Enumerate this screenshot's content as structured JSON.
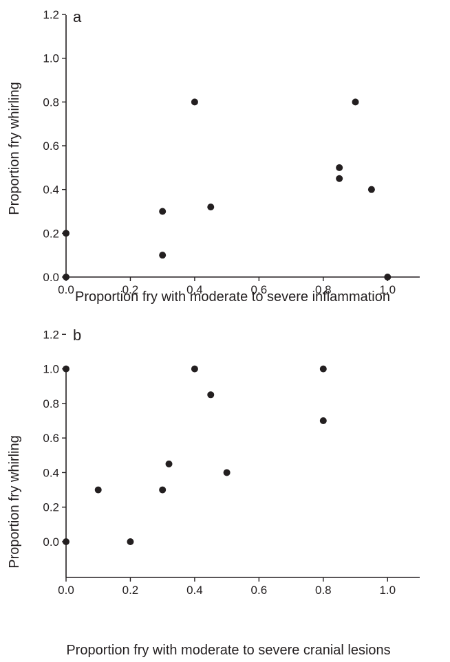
{
  "chart_data": [
    {
      "type": "scatter",
      "panel": "a",
      "xlabel": "Proportion fry with moderate to severe inflammation",
      "ylabel": "Proportion fry whirling",
      "xlim": [
        0,
        1.1
      ],
      "ylim": [
        0,
        1.2
      ],
      "xticks": [
        "0.0",
        "0.2",
        "0.4",
        "0.6",
        "0.8",
        "1.0"
      ],
      "yticks": [
        "0.0",
        "0.2",
        "0.4",
        "0.6",
        "0.8",
        "1.0",
        "1.2"
      ],
      "grid": false,
      "series": [
        {
          "points": [
            {
              "x": 0.0,
              "y": 0.0
            },
            {
              "x": 0.0,
              "y": 0.2
            },
            {
              "x": 0.3,
              "y": 0.1
            },
            {
              "x": 0.3,
              "y": 0.3
            },
            {
              "x": 0.4,
              "y": 0.8
            },
            {
              "x": 0.45,
              "y": 0.32
            },
            {
              "x": 0.85,
              "y": 0.45
            },
            {
              "x": 0.85,
              "y": 0.5
            },
            {
              "x": 0.9,
              "y": 0.8
            },
            {
              "x": 0.95,
              "y": 0.4
            },
            {
              "x": 1.0,
              "y": 0.0
            }
          ]
        }
      ]
    },
    {
      "type": "scatter",
      "panel": "b",
      "xlabel": "Proportion fry with moderate to severe cranial lesions",
      "ylabel": "Proportion fry whirling",
      "xlim": [
        0,
        1.1
      ],
      "ylim": [
        -0.2,
        1.2
      ],
      "xticks": [
        "0.0",
        "0.2",
        "0.4",
        "0.6",
        "0.8",
        "1.0"
      ],
      "yticks": [
        "0.0",
        "0.2",
        "0.4",
        "0.6",
        "0.8",
        "1.0",
        "1.2"
      ],
      "grid": false,
      "series": [
        {
          "points": [
            {
              "x": 0.0,
              "y": 0.0
            },
            {
              "x": 0.0,
              "y": 1.0
            },
            {
              "x": 0.1,
              "y": 0.3
            },
            {
              "x": 0.2,
              "y": 0.0
            },
            {
              "x": 0.3,
              "y": 0.3
            },
            {
              "x": 0.32,
              "y": 0.45
            },
            {
              "x": 0.4,
              "y": 1.0
            },
            {
              "x": 0.45,
              "y": 0.85
            },
            {
              "x": 0.5,
              "y": 0.4
            },
            {
              "x": 0.8,
              "y": 0.7
            },
            {
              "x": 0.8,
              "y": 1.0
            }
          ]
        }
      ]
    }
  ],
  "colors": {
    "ink": "#231f20"
  }
}
